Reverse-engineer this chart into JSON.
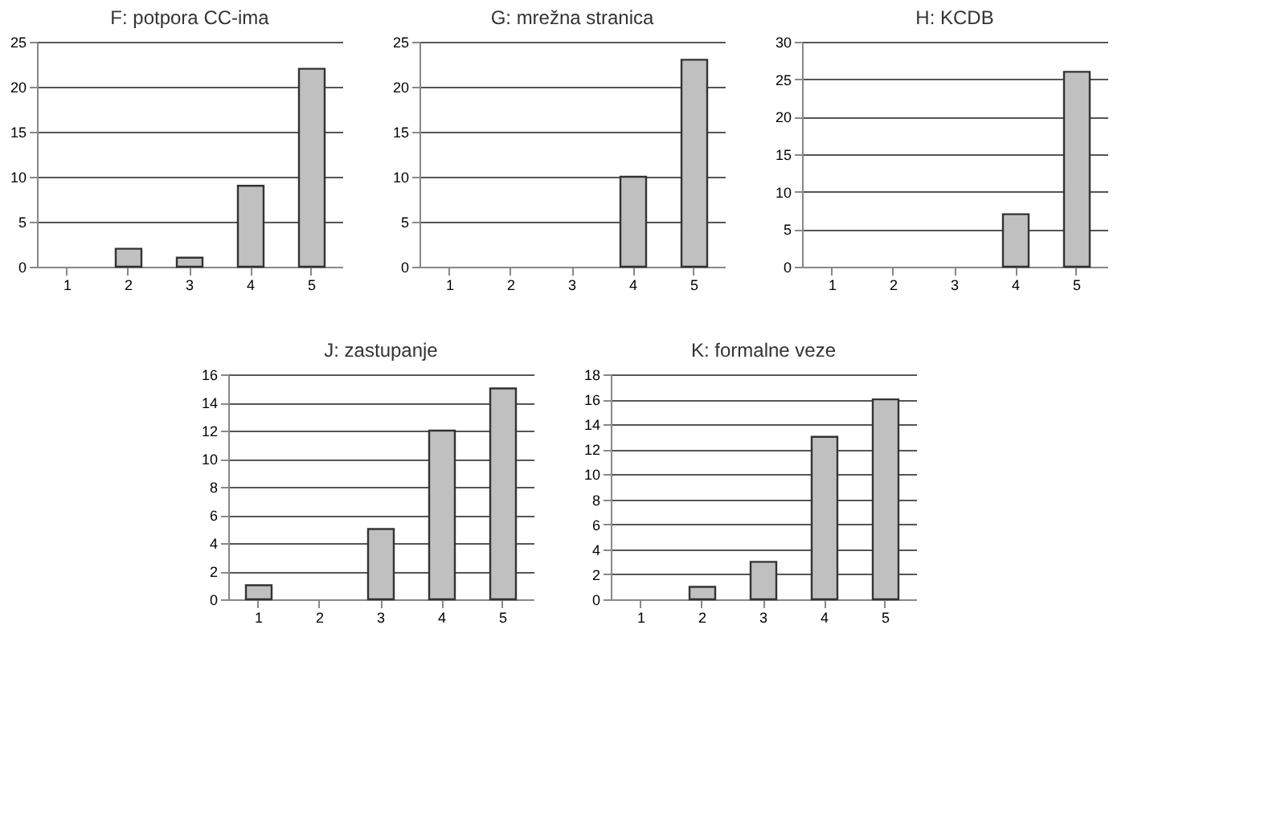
{
  "chart_data": [
    {
      "type": "bar",
      "title": "F: potpora CC-ima",
      "categories": [
        "1",
        "2",
        "3",
        "4",
        "5"
      ],
      "values": [
        0,
        2,
        1,
        9,
        22
      ],
      "color": "#c0c0c0",
      "ylim": [
        0,
        25
      ],
      "yticks": [
        0,
        5,
        10,
        15,
        20,
        25
      ],
      "grid": "y"
    },
    {
      "type": "bar",
      "title": "G: mrežna stranica",
      "categories": [
        "1",
        "2",
        "3",
        "4",
        "5"
      ],
      "values": [
        0,
        0,
        0,
        10,
        23
      ],
      "color": "#c0c0c0",
      "ylim": [
        0,
        25
      ],
      "yticks": [
        0,
        5,
        10,
        15,
        20,
        25
      ],
      "grid": "y"
    },
    {
      "type": "bar",
      "title": "H: KCDB",
      "categories": [
        "1",
        "2",
        "3",
        "4",
        "5"
      ],
      "values": [
        0,
        0,
        0,
        7,
        26
      ],
      "color": "#c0c0c0",
      "ylim": [
        0,
        30
      ],
      "yticks": [
        0,
        5,
        10,
        15,
        20,
        25,
        30
      ],
      "grid": "y"
    },
    {
      "type": "bar",
      "title": "J: zastupanje",
      "categories": [
        "1",
        "2",
        "3",
        "4",
        "5"
      ],
      "values": [
        1,
        0,
        5,
        12,
        15
      ],
      "color": "#c0c0c0",
      "ylim": [
        0,
        16
      ],
      "yticks": [
        0,
        2,
        4,
        6,
        8,
        10,
        12,
        14,
        16
      ],
      "grid": "y"
    },
    {
      "type": "bar",
      "title": "K: formalne veze",
      "categories": [
        "1",
        "2",
        "3",
        "4",
        "5"
      ],
      "values": [
        0,
        1,
        3,
        13,
        16
      ],
      "color": "#c0c0c0",
      "ylim": [
        0,
        18
      ],
      "yticks": [
        0,
        2,
        4,
        6,
        8,
        10,
        12,
        14,
        16,
        18
      ],
      "grid": "y"
    }
  ]
}
